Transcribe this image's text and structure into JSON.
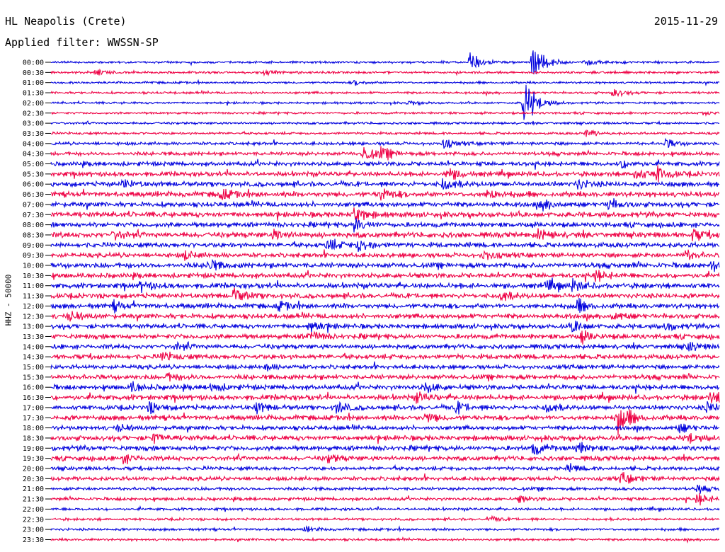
{
  "header": {
    "station": "HL Neapolis (Crete)",
    "date": "2015-11-29",
    "filter": "Applied filter: WWSSN-SP"
  },
  "chart_data": {
    "type": "line",
    "title": "HL Neapolis (Crete)",
    "date": "2015-11-29",
    "filter": "WWSSN-SP",
    "ylabel": "HHZ - 50000",
    "xlabel": "",
    "row_labels": [
      "00:00",
      "00:30",
      "01:00",
      "01:30",
      "02:00",
      "02:30",
      "03:00",
      "03:30",
      "04:00",
      "04:30",
      "05:00",
      "05:30",
      "06:00",
      "06:30",
      "07:00",
      "07:30",
      "08:00",
      "08:30",
      "09:00",
      "09:30",
      "10:00",
      "10:30",
      "11:00",
      "11:30",
      "12:00",
      "12:30",
      "13:00",
      "13:30",
      "14:00",
      "14:30",
      "15:00",
      "15:30",
      "16:00",
      "16:30",
      "17:00",
      "17:30",
      "18:00",
      "18:30",
      "19:00",
      "19:30",
      "20:00",
      "20:30",
      "21:00",
      "21:30",
      "22:00",
      "22:30",
      "23:00",
      "23:30"
    ],
    "row_minutes": 30,
    "colors": [
      "#0000dd",
      "#ee0044"
    ],
    "noise_level": [
      1.5,
      1.6,
      1.5,
      1.6,
      1.5,
      1.5,
      1.6,
      1.7,
      2.2,
      2.6,
      3.0,
      3.2,
      3.4,
      3.6,
      3.4,
      3.6,
      3.4,
      3.8,
      3.4,
      3.2,
      3.6,
      3.4,
      3.6,
      3.4,
      3.4,
      3.4,
      3.2,
      3.4,
      3.2,
      3.4,
      3.0,
      3.4,
      3.4,
      3.6,
      3.2,
      3.4,
      3.0,
      3.4,
      3.4,
      3.2,
      2.6,
      2.8,
      2.2,
      2.2,
      1.8,
      1.7,
      1.7,
      1.6
    ],
    "events": [
      {
        "row": 0,
        "minute": 9.4,
        "amp": 18
      },
      {
        "row": 0,
        "minute": 10.8,
        "amp": 30
      },
      {
        "row": 0,
        "minute": 12.0,
        "amp": 5
      },
      {
        "row": 1,
        "minute": 1.0,
        "amp": 4
      },
      {
        "row": 1,
        "minute": 4.8,
        "amp": 4
      },
      {
        "row": 2,
        "minute": 6.8,
        "amp": 4
      },
      {
        "row": 3,
        "minute": 12.6,
        "amp": 8
      },
      {
        "row": 4,
        "minute": 10.6,
        "amp": 44
      },
      {
        "row": 4,
        "minute": 8.0,
        "amp": 3
      },
      {
        "row": 5,
        "minute": 14.6,
        "amp": 4
      },
      {
        "row": 7,
        "minute": 12.0,
        "amp": 6
      },
      {
        "row": 8,
        "minute": 8.8,
        "amp": 8
      },
      {
        "row": 8,
        "minute": 13.8,
        "amp": 7
      },
      {
        "row": 9,
        "minute": 7.0,
        "amp": 14
      },
      {
        "row": 9,
        "minute": 7.4,
        "amp": 8
      },
      {
        "row": 10,
        "minute": 12.8,
        "amp": 7
      },
      {
        "row": 11,
        "minute": 8.9,
        "amp": 10
      },
      {
        "row": 11,
        "minute": 13.6,
        "amp": 12
      },
      {
        "row": 11,
        "minute": 13.1,
        "amp": 10
      },
      {
        "row": 12,
        "minute": 1.6,
        "amp": 7
      },
      {
        "row": 12,
        "minute": 8.8,
        "amp": 10
      },
      {
        "row": 12,
        "minute": 11.8,
        "amp": 8
      },
      {
        "row": 13,
        "minute": 3.8,
        "amp": 9
      },
      {
        "row": 13,
        "minute": 7.4,
        "amp": 10
      },
      {
        "row": 13,
        "minute": 9.8,
        "amp": 8
      },
      {
        "row": 14,
        "minute": 11.0,
        "amp": 9
      },
      {
        "row": 14,
        "minute": 12.5,
        "amp": 9
      },
      {
        "row": 15,
        "minute": 6.8,
        "amp": 12
      },
      {
        "row": 16,
        "minute": 6.8,
        "amp": 11
      },
      {
        "row": 17,
        "minute": 1.4,
        "amp": 7
      },
      {
        "row": 17,
        "minute": 5.0,
        "amp": 8
      },
      {
        "row": 17,
        "minute": 10.9,
        "amp": 8
      },
      {
        "row": 17,
        "minute": 14.4,
        "amp": 9
      },
      {
        "row": 18,
        "minute": 6.9,
        "amp": 12
      },
      {
        "row": 18,
        "minute": 6.2,
        "amp": 10
      },
      {
        "row": 19,
        "minute": 3.0,
        "amp": 7
      },
      {
        "row": 19,
        "minute": 9.7,
        "amp": 8
      },
      {
        "row": 19,
        "minute": 14.2,
        "amp": 9
      },
      {
        "row": 20,
        "minute": 3.5,
        "amp": 10
      },
      {
        "row": 20,
        "minute": 14.8,
        "amp": 9
      },
      {
        "row": 21,
        "minute": 12.2,
        "amp": 9
      },
      {
        "row": 22,
        "minute": 2.0,
        "amp": 7
      },
      {
        "row": 22,
        "minute": 11.1,
        "amp": 8
      },
      {
        "row": 22,
        "minute": 11.7,
        "amp": 8
      },
      {
        "row": 23,
        "minute": 4.1,
        "amp": 12
      },
      {
        "row": 23,
        "minute": 10.1,
        "amp": 8
      },
      {
        "row": 24,
        "minute": 1.4,
        "amp": 7
      },
      {
        "row": 24,
        "minute": 11.8,
        "amp": 10
      },
      {
        "row": 24,
        "minute": 5.1,
        "amp": 7
      },
      {
        "row": 25,
        "minute": 0.4,
        "amp": 8
      },
      {
        "row": 25,
        "minute": 12.6,
        "amp": 7
      },
      {
        "row": 26,
        "minute": 5.8,
        "amp": 10
      },
      {
        "row": 26,
        "minute": 11.7,
        "amp": 9
      },
      {
        "row": 26,
        "minute": 13.8,
        "amp": 6
      },
      {
        "row": 27,
        "minute": 5.8,
        "amp": 9
      },
      {
        "row": 27,
        "minute": 11.9,
        "amp": 8
      },
      {
        "row": 28,
        "minute": 2.8,
        "amp": 6
      },
      {
        "row": 28,
        "minute": 14.3,
        "amp": 7
      },
      {
        "row": 29,
        "minute": 2.5,
        "amp": 7
      },
      {
        "row": 30,
        "minute": 4.8,
        "amp": 5
      },
      {
        "row": 31,
        "minute": 2.6,
        "amp": 6
      },
      {
        "row": 32,
        "minute": 1.8,
        "amp": 8
      },
      {
        "row": 32,
        "minute": 8.4,
        "amp": 9
      },
      {
        "row": 32,
        "minute": 3.6,
        "amp": 7
      },
      {
        "row": 33,
        "minute": 8.2,
        "amp": 8
      },
      {
        "row": 33,
        "minute": 14.8,
        "amp": 8
      },
      {
        "row": 34,
        "minute": 2.2,
        "amp": 9
      },
      {
        "row": 34,
        "minute": 4.6,
        "amp": 9
      },
      {
        "row": 34,
        "minute": 6.4,
        "amp": 10
      },
      {
        "row": 34,
        "minute": 9.1,
        "amp": 9
      },
      {
        "row": 34,
        "minute": 11.1,
        "amp": 8
      },
      {
        "row": 34,
        "minute": 14.7,
        "amp": 9
      },
      {
        "row": 35,
        "minute": 12.7,
        "amp": 30
      },
      {
        "row": 35,
        "minute": 8.4,
        "amp": 8
      },
      {
        "row": 36,
        "minute": 1.5,
        "amp": 6
      },
      {
        "row": 36,
        "minute": 14.1,
        "amp": 7
      },
      {
        "row": 37,
        "minute": 2.3,
        "amp": 7
      },
      {
        "row": 37,
        "minute": 14.3,
        "amp": 8
      },
      {
        "row": 38,
        "minute": 10.8,
        "amp": 12
      },
      {
        "row": 38,
        "minute": 11.8,
        "amp": 10
      },
      {
        "row": 39,
        "minute": 1.6,
        "amp": 8
      },
      {
        "row": 39,
        "minute": 6.2,
        "amp": 7
      },
      {
        "row": 40,
        "minute": 11.6,
        "amp": 6
      },
      {
        "row": 41,
        "minute": 12.8,
        "amp": 10
      },
      {
        "row": 42,
        "minute": 14.5,
        "amp": 6
      },
      {
        "row": 43,
        "minute": 14.5,
        "amp": 10
      },
      {
        "row": 43,
        "minute": 10.5,
        "amp": 5
      },
      {
        "row": 45,
        "minute": 9.8,
        "amp": 5
      },
      {
        "row": 46,
        "minute": 5.7,
        "amp": 4
      },
      {
        "row": 46,
        "minute": 15.0,
        "amp": 8
      }
    ]
  }
}
